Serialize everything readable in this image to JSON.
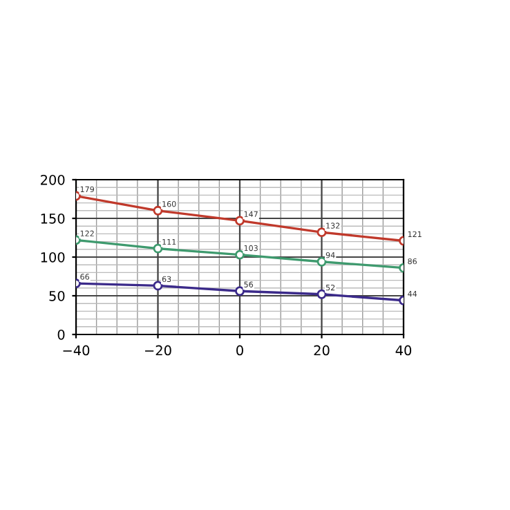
{
  "chart_data": {
    "type": "line",
    "x": [
      -40,
      -20,
      0,
      20,
      40
    ],
    "series": [
      {
        "color": "#c0392b",
        "values": [
          179,
          160,
          147,
          132,
          121
        ]
      },
      {
        "color": "#3e9a6e",
        "values": [
          122,
          111,
          103,
          94,
          86
        ]
      },
      {
        "color": "#3b2a8a",
        "values": [
          66,
          63,
          56,
          52,
          44
        ]
      }
    ],
    "xlim": [
      -40,
      40
    ],
    "ylim": [
      0,
      200
    ],
    "xticks": [
      {
        "value": -40,
        "label": "−40"
      },
      {
        "value": -20,
        "label": "−20"
      },
      0,
      20,
      40
    ],
    "yticks": [
      0,
      50,
      100,
      150,
      200
    ],
    "grid": true,
    "marker": "circle",
    "line_style": "solid",
    "data_labels": true
  }
}
